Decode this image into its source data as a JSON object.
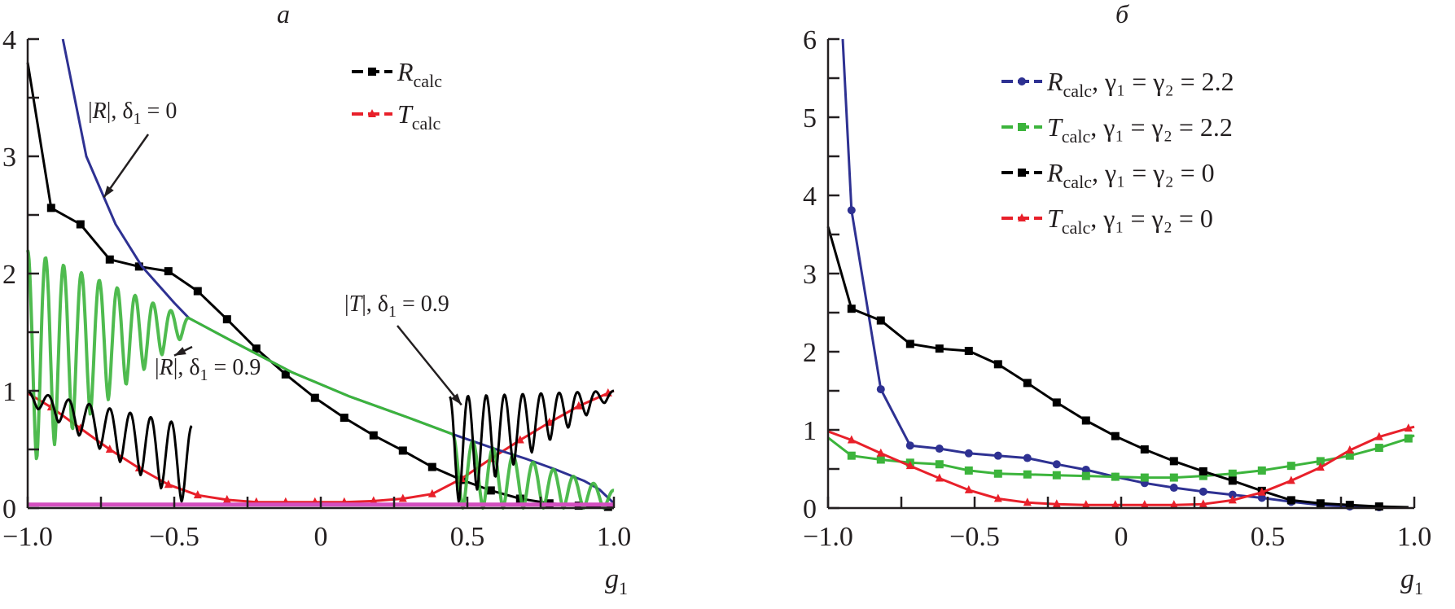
{
  "chart_data": [
    {
      "type": "line",
      "panel_label": "а",
      "xlabel": "g₁",
      "xlabel_base": "g",
      "xlabel_sub": "1",
      "ylabel": "",
      "xlim": [
        -1.0,
        1.0
      ],
      "ylim": [
        0,
        4
      ],
      "x_ticks": [
        -1.0,
        -0.75,
        -0.5,
        -0.25,
        0,
        0.25,
        0.5,
        0.75,
        1.0
      ],
      "x_tick_labels": [
        {
          "value": -1.0,
          "label": "−1.0"
        },
        {
          "value": -0.5,
          "label": "−0.5"
        },
        {
          "value": 0,
          "label": "0"
        },
        {
          "value": 0.5,
          "label": "0.5"
        },
        {
          "value": 1.0,
          "label": "1.0"
        }
      ],
      "y_ticks": [
        0,
        0.5,
        1,
        1.5,
        2,
        2.5,
        3,
        3.5,
        4
      ],
      "y_tick_labels": [
        {
          "value": 0,
          "label": "0"
        },
        {
          "value": 1,
          "label": "1"
        },
        {
          "value": 2,
          "label": "2"
        },
        {
          "value": 3,
          "label": "3"
        },
        {
          "value": 4,
          "label": "4"
        }
      ],
      "grid": false,
      "legend_position": "top-right",
      "legend": [
        {
          "name": "R_calc",
          "base": "R",
          "sub": "calc",
          "rest": "",
          "color": "#000000",
          "marker": "square"
        },
        {
          "name": "T_calc",
          "base": "T",
          "sub": "calc",
          "rest": "",
          "color": "#e8202a",
          "marker": "triangle"
        }
      ],
      "series": [
        {
          "name": "R_calc",
          "color": "#000000",
          "marker": "square",
          "x": [
            -1.0,
            -0.92,
            -0.82,
            -0.72,
            -0.62,
            -0.52,
            -0.42,
            -0.32,
            -0.22,
            -0.12,
            -0.02,
            0.08,
            0.18,
            0.28,
            0.38,
            0.48,
            0.58,
            0.68,
            0.78,
            0.88,
            0.98,
            1.0
          ],
          "y": [
            3.8,
            2.56,
            2.42,
            2.12,
            2.06,
            2.02,
            1.85,
            1.61,
            1.36,
            1.14,
            0.94,
            0.77,
            0.62,
            0.49,
            0.35,
            0.24,
            0.15,
            0.08,
            0.04,
            0.02,
            0.01,
            0.0
          ]
        },
        {
          "name": "T_calc",
          "color": "#e8202a",
          "marker": "triangle",
          "x": [
            -1.0,
            -0.92,
            -0.82,
            -0.72,
            -0.62,
            -0.52,
            -0.42,
            -0.32,
            -0.22,
            -0.12,
            -0.02,
            0.08,
            0.18,
            0.28,
            0.38,
            0.48,
            0.58,
            0.68,
            0.78,
            0.88,
            0.98,
            1.0
          ],
          "y": [
            0.98,
            0.86,
            0.68,
            0.5,
            0.34,
            0.2,
            0.11,
            0.07,
            0.05,
            0.05,
            0.05,
            0.05,
            0.06,
            0.08,
            0.12,
            0.25,
            0.42,
            0.58,
            0.73,
            0.87,
            0.98,
            1.0
          ]
        },
        {
          "name": "|R|, δ1 = 0",
          "color": "#2e3192",
          "marker": "none",
          "x": [
            -0.88,
            -0.8,
            -0.7,
            -0.61,
            -0.5,
            -0.45,
            -0.3,
            -0.1,
            0.1,
            0.3,
            0.45,
            0.6,
            0.7,
            0.8,
            0.9,
            0.95,
            1.0
          ],
          "y": [
            4.0,
            3.0,
            2.42,
            2.06,
            1.75,
            1.62,
            1.42,
            1.16,
            0.95,
            0.77,
            0.63,
            0.5,
            0.42,
            0.33,
            0.23,
            0.16,
            0.04
          ]
        },
        {
          "name": "|R|, δ1 = 0.9",
          "color": "#3cb43c",
          "marker": "none",
          "x": [
            -0.45,
            -0.3,
            -0.1,
            0.1,
            0.3,
            0.45
          ],
          "y": [
            1.62,
            1.42,
            1.16,
            0.95,
            0.77,
            0.63
          ],
          "oscillation_regions": [
            {
              "from": -1.0,
              "to": -0.45,
              "upper": [
                2.2,
                1.62
              ],
              "lower": [
                0.35,
                1.5
              ],
              "periods": 9
            },
            {
              "from": 0.45,
              "to": 1.0,
              "upper": [
                0.63,
                0.15
              ],
              "lower": [
                0.0,
                0.0
              ],
              "periods": 8
            }
          ]
        },
        {
          "name": "|T|, δ1 = 0.9",
          "color": "#000000",
          "marker": "none",
          "oscillation_regions": [
            {
              "from": -1.0,
              "to": -0.44,
              "upper": [
                1.0,
                0.7
              ],
              "lower": [
                0.9,
                0.0
              ],
              "periods": 8
            },
            {
              "from": 0.44,
              "to": 1.0,
              "upper": [
                0.95,
                1.0
              ],
              "lower": [
                0.0,
                0.95
              ],
              "periods": 9
            }
          ]
        },
        {
          "name": "baseline",
          "color": "#d44fbf",
          "marker": "none",
          "x": [
            -1.0,
            1.0
          ],
          "y": [
            0.03,
            0.03
          ]
        }
      ],
      "annotations": [
        {
          "id": "R0",
          "base": "|R|, δ",
          "sub": "1",
          "rest": " = 0",
          "points_to": [
            -0.74,
            2.65
          ]
        },
        {
          "id": "R09",
          "base": "|R|, δ",
          "sub": "1",
          "rest": " = 0.9",
          "points_to": [
            -0.5,
            1.3
          ]
        },
        {
          "id": "T09",
          "base": "|T|, δ",
          "sub": "1",
          "rest": " = 0.9",
          "points_to": [
            0.48,
            0.88
          ]
        }
      ]
    },
    {
      "type": "line",
      "panel_label": "б",
      "xlabel": "g₁",
      "xlabel_base": "g",
      "xlabel_sub": "1",
      "ylabel": "",
      "xlim": [
        -1.0,
        1.0
      ],
      "ylim": [
        0,
        6
      ],
      "x_ticks": [
        -1.0,
        -0.75,
        -0.5,
        -0.25,
        0,
        0.25,
        0.5,
        0.75,
        1.0
      ],
      "x_tick_labels": [
        {
          "value": -1.0,
          "label": "−1.0"
        },
        {
          "value": -0.5,
          "label": "−0.5"
        },
        {
          "value": 0,
          "label": "0"
        },
        {
          "value": 0.5,
          "label": "0.5"
        },
        {
          "value": 1.0,
          "label": "1.0"
        }
      ],
      "y_ticks": [
        0,
        0.5,
        1,
        1.5,
        2,
        2.5,
        3,
        3.5,
        4,
        4.5,
        5,
        5.5,
        6
      ],
      "y_tick_labels": [
        {
          "value": 0,
          "label": "0"
        },
        {
          "value": 1,
          "label": "1"
        },
        {
          "value": 2,
          "label": "2"
        },
        {
          "value": 3,
          "label": "3"
        },
        {
          "value": 4,
          "label": "4"
        },
        {
          "value": 5,
          "label": "5"
        },
        {
          "value": 6,
          "label": "6"
        }
      ],
      "grid": false,
      "legend_position": "top-right",
      "legend": [
        {
          "name": "R_calc, γ1 = γ2 = 2.2",
          "base": "R",
          "sub": "calc",
          "rest": ", γ₁ = γ₂ = 2.2",
          "color": "#2e3192",
          "marker": "circle"
        },
        {
          "name": "T_calc, γ1 = γ2 = 2.2",
          "base": "T",
          "sub": "calc",
          "rest": ", γ₁ = γ₂ = 2.2",
          "color": "#3cb43c",
          "marker": "square"
        },
        {
          "name": "R_calc, γ1 = γ2 = 0",
          "base": "R",
          "sub": "calc",
          "rest": ", γ₁ = γ₂ = 0",
          "color": "#000000",
          "marker": "square"
        },
        {
          "name": "T_calc, γ1 = γ2 = 0",
          "base": "T",
          "sub": "calc",
          "rest": ", γ₁ = γ₂ = 0",
          "color": "#e8202a",
          "marker": "triangle"
        }
      ],
      "series": [
        {
          "name": "R_calc, γ1 = γ2 = 2.2",
          "color": "#2e3192",
          "marker": "circle",
          "x": [
            -0.95,
            -0.92,
            -0.82,
            -0.72,
            -0.62,
            -0.52,
            -0.42,
            -0.32,
            -0.22,
            -0.12,
            -0.02,
            0.08,
            0.18,
            0.28,
            0.38,
            0.48,
            0.58,
            0.68,
            0.78,
            0.88,
            0.98
          ],
          "y": [
            6.0,
            3.81,
            1.52,
            0.8,
            0.76,
            0.7,
            0.67,
            0.64,
            0.56,
            0.49,
            0.4,
            0.32,
            0.26,
            0.21,
            0.17,
            0.13,
            0.08,
            0.04,
            0.02,
            0.01,
            0.01
          ]
        },
        {
          "name": "T_calc, γ1 = γ2 = 2.2",
          "color": "#3cb43c",
          "marker": "square",
          "x": [
            -1.0,
            -0.92,
            -0.82,
            -0.72,
            -0.62,
            -0.52,
            -0.42,
            -0.32,
            -0.22,
            -0.12,
            -0.02,
            0.08,
            0.18,
            0.28,
            0.38,
            0.48,
            0.58,
            0.68,
            0.78,
            0.88,
            0.98,
            1.0
          ],
          "y": [
            0.9,
            0.67,
            0.62,
            0.58,
            0.56,
            0.48,
            0.44,
            0.43,
            0.42,
            0.41,
            0.4,
            0.39,
            0.39,
            0.41,
            0.44,
            0.48,
            0.54,
            0.6,
            0.67,
            0.77,
            0.89,
            0.93
          ]
        },
        {
          "name": "R_calc, γ1 = γ2 = 0",
          "color": "#000000",
          "marker": "square",
          "x": [
            -1.0,
            -0.92,
            -0.82,
            -0.72,
            -0.62,
            -0.52,
            -0.42,
            -0.32,
            -0.22,
            -0.12,
            -0.02,
            0.08,
            0.18,
            0.28,
            0.38,
            0.48,
            0.58,
            0.68,
            0.78,
            0.88,
            0.98
          ],
          "y": [
            3.6,
            2.55,
            2.4,
            2.1,
            2.04,
            2.01,
            1.84,
            1.6,
            1.35,
            1.12,
            0.92,
            0.75,
            0.6,
            0.47,
            0.35,
            0.22,
            0.1,
            0.06,
            0.04,
            0.02,
            0.01
          ]
        },
        {
          "name": "T_calc, γ1 = γ2 = 0",
          "color": "#e8202a",
          "marker": "triangle",
          "x": [
            -1.0,
            -0.92,
            -0.82,
            -0.72,
            -0.62,
            -0.52,
            -0.42,
            -0.32,
            -0.22,
            -0.12,
            -0.02,
            0.08,
            0.18,
            0.28,
            0.38,
            0.48,
            0.58,
            0.68,
            0.78,
            0.88,
            0.98,
            1.0
          ],
          "y": [
            0.98,
            0.87,
            0.7,
            0.54,
            0.38,
            0.23,
            0.12,
            0.07,
            0.05,
            0.04,
            0.04,
            0.04,
            0.04,
            0.05,
            0.1,
            0.2,
            0.35,
            0.52,
            0.74,
            0.91,
            1.02,
            1.04
          ]
        }
      ],
      "annotations": []
    }
  ]
}
